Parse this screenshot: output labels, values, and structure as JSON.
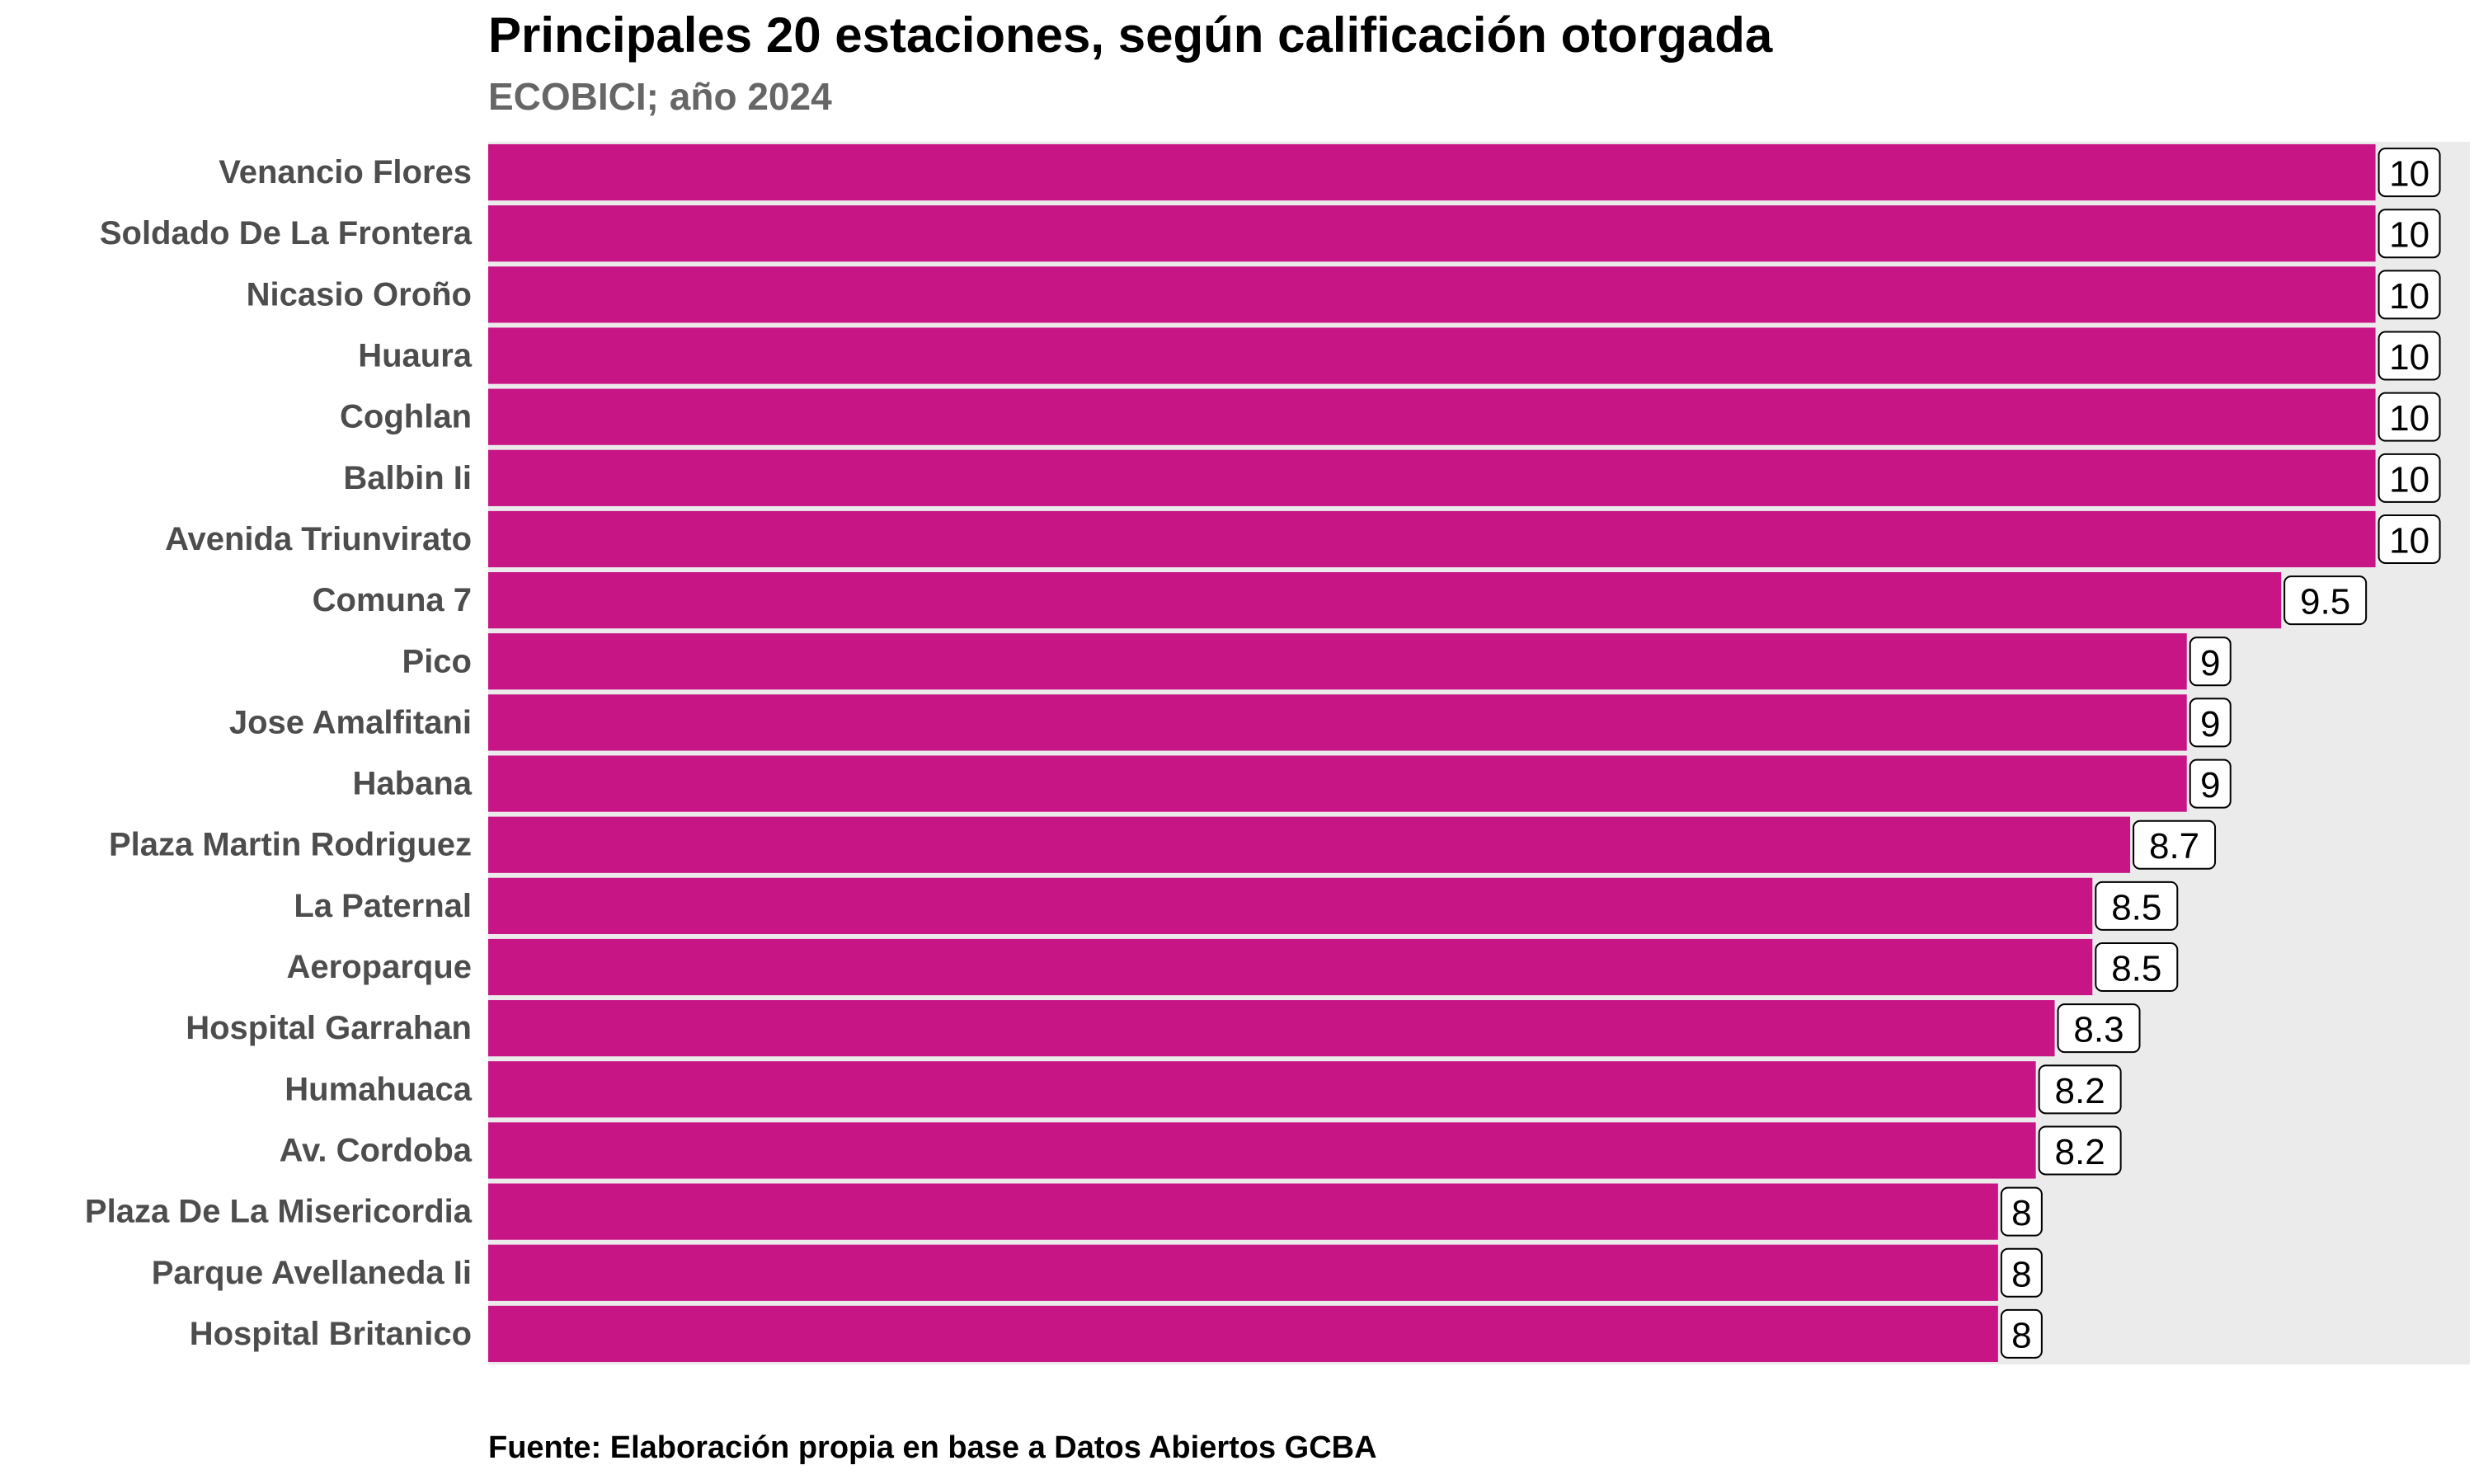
{
  "chart_data": {
    "type": "bar",
    "orientation": "horizontal",
    "title": "Principales 20 estaciones, según calificación otorgada",
    "subtitle": "ECOBICI; año 2024",
    "caption": "Fuente: Elaboración propia en base a Datos Abiertos GCBA",
    "xlabel": "",
    "ylabel": "",
    "xlim": [
      0,
      10.5
    ],
    "grid": false,
    "legend": "none",
    "bar_color": "#C71585",
    "panel_color": "#EBEBEB",
    "categories": [
      "Venancio Flores",
      "Soldado De La Frontera",
      "Nicasio Oroño",
      "Huaura",
      "Coghlan",
      "Balbin Ii",
      "Avenida Triunvirato",
      "Comuna 7",
      "Pico",
      "Jose Amalfitani",
      "Habana",
      "Plaza Martin Rodriguez",
      "La Paternal",
      "Aeroparque",
      "Hospital Garrahan",
      "Humahuaca",
      "Av. Cordoba",
      "Plaza De La Misericordia",
      "Parque Avellaneda Ii",
      "Hospital Britanico"
    ],
    "values": [
      10,
      10,
      10,
      10,
      10,
      10,
      10,
      9.5,
      9,
      9,
      9,
      8.7,
      8.5,
      8.5,
      8.3,
      8.2,
      8.2,
      8,
      8,
      8
    ],
    "data_labels": [
      "10",
      "10",
      "10",
      "10",
      "10",
      "10",
      "10",
      "9.5",
      "9",
      "9",
      "9",
      "8.7",
      "8.5",
      "8.5",
      "8.3",
      "8.2",
      "8.2",
      "8",
      "8",
      "8"
    ]
  }
}
